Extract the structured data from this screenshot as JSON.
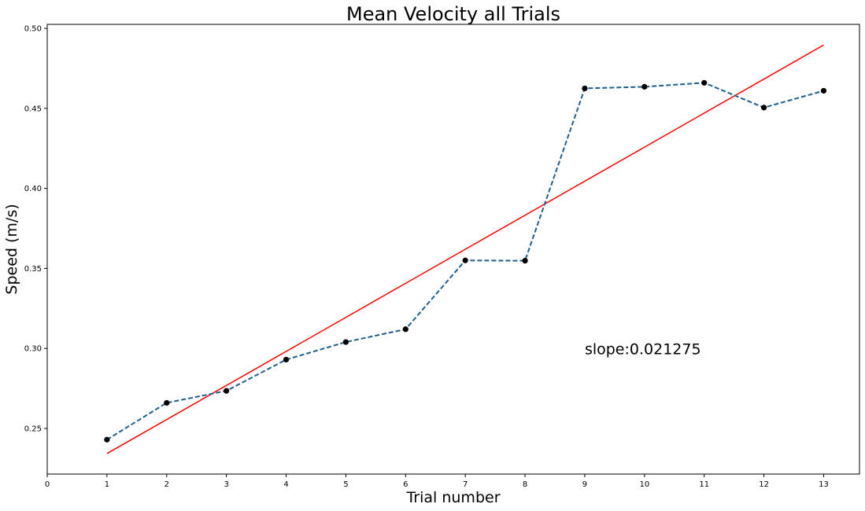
{
  "chart_data": {
    "type": "line",
    "title": "Mean Velocity all Trials",
    "xlabel": "Trial number",
    "ylabel": "Speed (m/s)",
    "x": [
      1,
      2,
      3,
      4,
      5,
      6,
      7,
      8,
      9,
      10,
      11,
      12,
      13
    ],
    "series": [
      {
        "values": [
          0.243,
          0.266,
          0.2735,
          0.293,
          0.304,
          0.312,
          0.355,
          0.3548,
          0.4625,
          0.4635,
          0.466,
          0.4505,
          0.461
        ],
        "color": "#1f5f8b",
        "marker_color": "#000000",
        "style": "dashed-with-markers"
      }
    ],
    "trendline": {
      "x": [
        1,
        13
      ],
      "y": [
        0.2343,
        0.4896
      ],
      "color": "#ff0000"
    },
    "annotation": {
      "text": "slope:0.021275",
      "x": 9,
      "y": 0.298
    },
    "xlim": [
      0,
      13.6
    ],
    "ylim": [
      0.2215,
      0.5025
    ],
    "xticks": [
      0,
      1,
      2,
      3,
      4,
      5,
      6,
      7,
      8,
      9,
      10,
      11,
      12,
      13
    ],
    "yticks": [
      0.25,
      0.3,
      0.35,
      0.4,
      0.45,
      0.5
    ],
    "ytick_labels": [
      "0.25",
      "0.30",
      "0.35",
      "0.40",
      "0.45",
      "0.50"
    ],
    "grid": false,
    "legend": "none"
  }
}
